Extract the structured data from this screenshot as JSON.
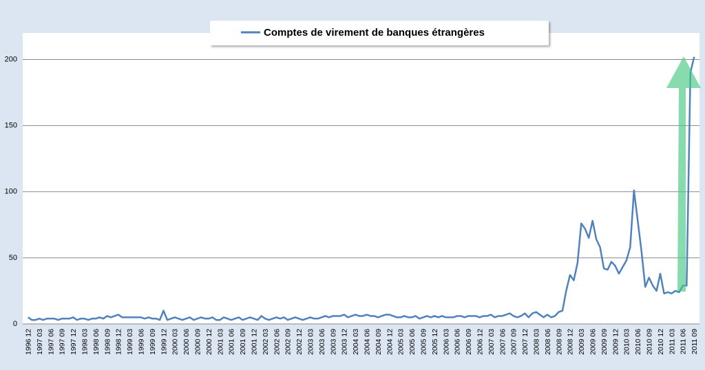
{
  "chart_data": {
    "type": "line",
    "categories": [
      "1996 12",
      null,
      null,
      "1997 03",
      null,
      null,
      "1997 06",
      null,
      null,
      "1997 09",
      null,
      null,
      "1997 12",
      null,
      null,
      "1998 03",
      null,
      null,
      "1998 06",
      null,
      null,
      "1998 09",
      null,
      null,
      "1998 12",
      null,
      null,
      "1999 03",
      null,
      null,
      "1999 06",
      null,
      null,
      "1999 09",
      null,
      null,
      "1999 12",
      null,
      null,
      "2000 03",
      null,
      null,
      "2000 06",
      null,
      null,
      "2000 09",
      null,
      null,
      "2000 12",
      null,
      null,
      "2001 03",
      null,
      null,
      "2001 06",
      null,
      null,
      "2001 09",
      null,
      null,
      "2001 12",
      null,
      null,
      "2002 03",
      null,
      null,
      "2002 06",
      null,
      null,
      "2002 09",
      null,
      null,
      "2002 12",
      null,
      null,
      "2003 03",
      null,
      null,
      "2003 06",
      null,
      null,
      "2003 09",
      null,
      null,
      "2003 12",
      null,
      null,
      "2004 03",
      null,
      null,
      "2004 06",
      null,
      null,
      "2004 09",
      null,
      null,
      "2004 12",
      null,
      null,
      "2005 03",
      null,
      null,
      "2005 06",
      null,
      null,
      "2005 09",
      null,
      null,
      "2005 12",
      null,
      null,
      "2006 03",
      null,
      null,
      "2006 06",
      null,
      null,
      "2006 09",
      null,
      null,
      "2006 12",
      null,
      null,
      "2007 03",
      null,
      null,
      "2007 06",
      null,
      null,
      "2007 09",
      null,
      null,
      "2007 12",
      null,
      null,
      "2008 03",
      null,
      null,
      "2008 06",
      null,
      null,
      "2008 09",
      null,
      null,
      "2008 12",
      null,
      null,
      "2009 03",
      null,
      null,
      "2009 06",
      null,
      null,
      "2009 09",
      null,
      null,
      "2009 12",
      null,
      null,
      "2010 03",
      null,
      null,
      "2010 06",
      null,
      null,
      "2010 09",
      null,
      null,
      "2010 12",
      null,
      null,
      "2011 03",
      null,
      null,
      "2011 06",
      null,
      null,
      "2011 09"
    ],
    "series": [
      {
        "name": "Comptes de virement de banques étrangères",
        "color": "#4f81bd",
        "values": [
          5,
          3,
          3,
          4,
          3,
          4,
          4,
          4,
          3,
          4,
          4,
          4,
          5,
          3,
          4,
          4,
          3,
          4,
          4,
          5,
          4,
          6,
          5,
          6,
          7,
          5,
          5,
          5,
          5,
          5,
          5,
          4,
          5,
          4,
          4,
          3,
          10,
          3,
          4,
          5,
          4,
          3,
          4,
          5,
          3,
          4,
          5,
          4,
          4,
          5,
          3,
          3,
          5,
          4,
          3,
          4,
          5,
          3,
          4,
          5,
          4,
          3,
          6,
          4,
          3,
          4,
          5,
          4,
          5,
          3,
          4,
          5,
          4,
          3,
          4,
          5,
          4,
          4,
          5,
          6,
          5,
          6,
          6,
          6,
          7,
          5,
          6,
          7,
          6,
          6,
          7,
          6,
          6,
          5,
          6,
          7,
          7,
          6,
          5,
          5,
          6,
          5,
          5,
          6,
          4,
          5,
          6,
          5,
          6,
          5,
          6,
          5,
          5,
          5,
          6,
          6,
          5,
          6,
          6,
          6,
          5,
          6,
          6,
          7,
          5,
          6,
          6,
          7,
          8,
          6,
          5,
          6,
          8,
          5,
          8,
          9,
          7,
          5,
          7,
          5,
          6,
          9,
          10,
          25,
          37,
          33,
          46,
          76,
          72,
          65,
          78,
          64,
          58,
          42,
          41,
          47,
          44,
          38,
          43,
          48,
          58,
          101,
          78,
          55,
          28,
          35,
          29,
          25,
          38,
          23,
          24,
          23,
          25,
          24,
          29,
          29,
          190,
          202
        ]
      }
    ],
    "ylim": [
      0,
      220
    ],
    "yticks": [
      0,
      50,
      100,
      150,
      200
    ],
    "grid": true,
    "legend": "top"
  }
}
